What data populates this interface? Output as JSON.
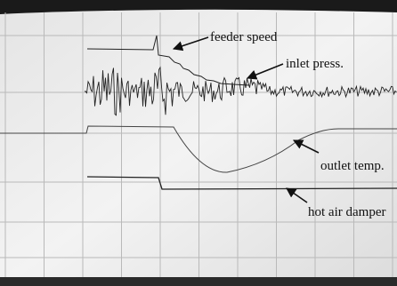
{
  "labels": {
    "feeder_speed": "feeder speed",
    "inlet_press": "inlet press.",
    "outlet_temp": "outlet temp.",
    "hot_air_damper": "hot air damper"
  }
}
